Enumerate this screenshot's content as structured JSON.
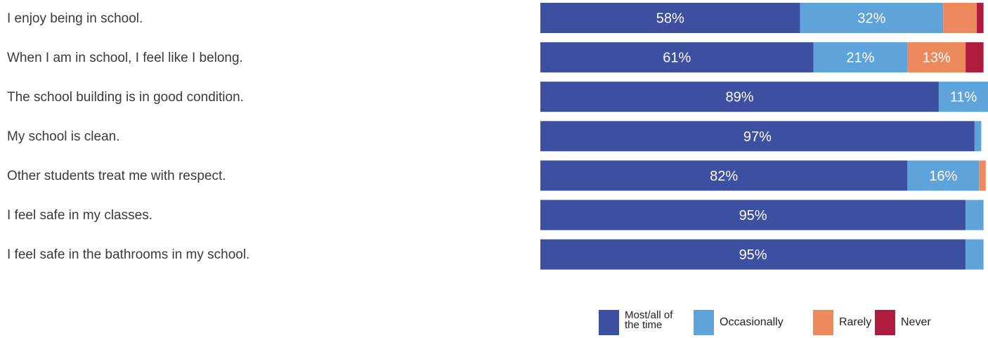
{
  "chart_data": {
    "type": "bar",
    "orientation": "horizontal",
    "stacked": true,
    "percent_stacked": true,
    "categories": [
      "I enjoy being in school.",
      "When I am in school, I feel like I belong.",
      "The school building is in good condition.",
      "My school is clean.",
      "Other students treat me with respect.",
      "I feel safe in my classes.",
      "I feel safe in the bathrooms in my school."
    ],
    "series": [
      {
        "name": "Most/all of the time",
        "color": "#3d4fa0",
        "values": [
          58,
          61,
          89,
          97,
          82,
          95,
          95
        ],
        "labels": [
          "58%",
          "61%",
          "89%",
          "97%",
          "82%",
          "95%",
          "95%"
        ]
      },
      {
        "name": "Occasionally",
        "color": "#5ea4da",
        "values": [
          32,
          21,
          11,
          1.5,
          16,
          4,
          4
        ],
        "labels": [
          "32%",
          "21%",
          "11%",
          "",
          "16%",
          "",
          ""
        ]
      },
      {
        "name": "Rarely",
        "color": "#ec8a5e",
        "values": [
          7.5,
          13,
          0,
          0,
          1.5,
          0,
          0
        ],
        "labels": [
          "",
          "13%",
          "",
          "",
          "",
          "",
          ""
        ]
      },
      {
        "name": "Never",
        "color": "#b01c3e",
        "values": [
          1.5,
          4,
          0,
          0,
          0,
          0,
          0
        ],
        "labels": [
          "",
          "",
          "",
          "",
          "",
          "",
          ""
        ]
      }
    ],
    "xlim": [
      0,
      100
    ],
    "legend_position": "bottom-right",
    "grid": false
  }
}
